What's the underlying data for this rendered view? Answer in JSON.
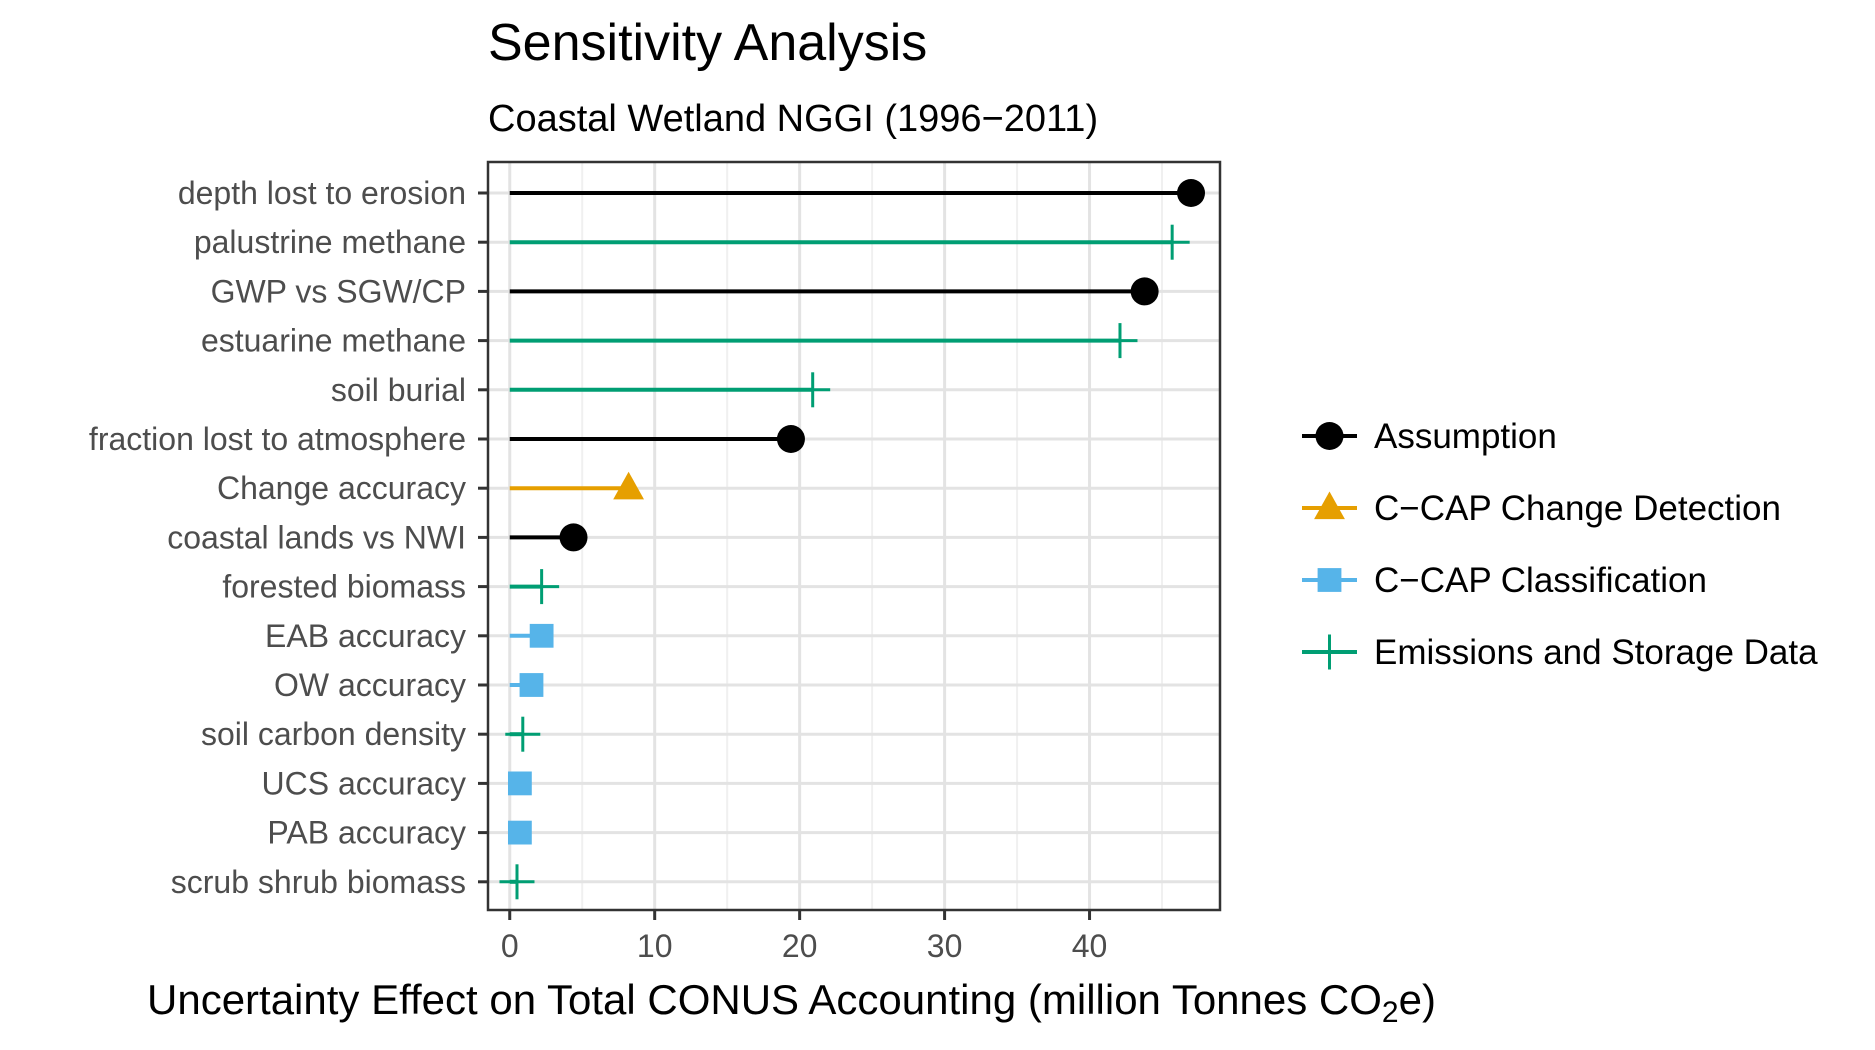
{
  "chart_data": {
    "type": "lollipop",
    "title": "Sensitivity Analysis",
    "subtitle": "Coastal Wetland NGGI (1996−2011)",
    "xlabel": "Uncertainty Effect on Total CONUS Accounting (million Tonnes CO₂e)",
    "xlabel_parts": {
      "before": "Uncertainty Effect on Total CONUS Accounting (million Tonnes CO",
      "subscript": "2",
      "after": "e)"
    },
    "ylabel": "",
    "xlim": [
      -1.5,
      49
    ],
    "xticks": [
      0,
      10,
      20,
      30,
      40
    ],
    "grid": true,
    "legend_position": "right",
    "series": [
      {
        "name": "Assumption",
        "color": "#000000",
        "marker": "circle"
      },
      {
        "name": "C−CAP Change Detection",
        "color": "#E69F00",
        "marker": "triangle"
      },
      {
        "name": "C−CAP Classification",
        "color": "#56B4E9",
        "marker": "square"
      },
      {
        "name": "Emissions and Storage Data",
        "color": "#009E73",
        "marker": "plus"
      }
    ],
    "categories": [
      "depth lost to erosion",
      "palustrine methane",
      "GWP vs SGW/CP",
      "estuarine methane",
      "soil burial",
      "fraction lost to atmosphere",
      "Change accuracy",
      "coastal lands vs NWI",
      "forested biomass",
      "EAB accuracy",
      "OW accuracy",
      "soil carbon density",
      "UCS accuracy",
      "PAB accuracy",
      "scrub shrub biomass"
    ],
    "points": [
      {
        "label": "depth lost to erosion",
        "value": 47.0,
        "series": "Assumption"
      },
      {
        "label": "palustrine methane",
        "value": 45.7,
        "series": "Emissions and Storage Data"
      },
      {
        "label": "GWP vs SGW/CP",
        "value": 43.8,
        "series": "Assumption"
      },
      {
        "label": "estuarine methane",
        "value": 42.1,
        "series": "Emissions and Storage Data"
      },
      {
        "label": "soil burial",
        "value": 20.9,
        "series": "Emissions and Storage Data"
      },
      {
        "label": "fraction lost to atmosphere",
        "value": 19.4,
        "series": "Assumption"
      },
      {
        "label": "Change accuracy",
        "value": 8.2,
        "series": "C−CAP Change Detection"
      },
      {
        "label": "coastal lands vs NWI",
        "value": 4.4,
        "series": "Assumption"
      },
      {
        "label": "forested biomass",
        "value": 2.2,
        "series": "Emissions and Storage Data"
      },
      {
        "label": "EAB accuracy",
        "value": 2.2,
        "series": "C−CAP Classification"
      },
      {
        "label": "OW accuracy",
        "value": 1.5,
        "series": "C−CAP Classification"
      },
      {
        "label": "soil carbon density",
        "value": 0.9,
        "series": "Emissions and Storage Data"
      },
      {
        "label": "UCS accuracy",
        "value": 0.7,
        "series": "C−CAP Classification"
      },
      {
        "label": "PAB accuracy",
        "value": 0.7,
        "series": "C−CAP Classification"
      },
      {
        "label": "scrub shrub biomass",
        "value": 0.5,
        "series": "Emissions and Storage Data"
      }
    ]
  }
}
